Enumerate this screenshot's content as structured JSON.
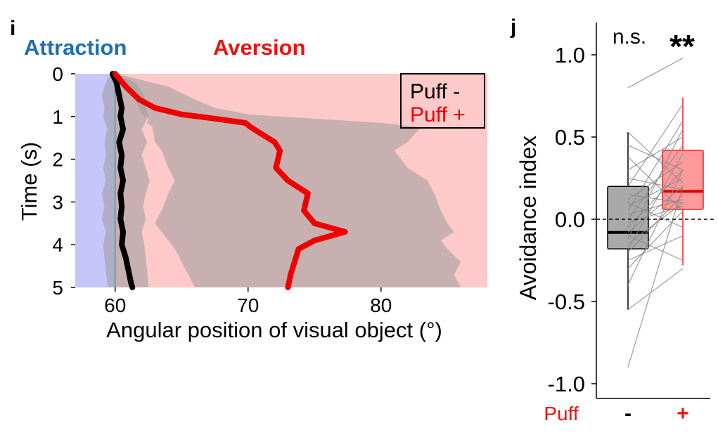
{
  "panels": {
    "i": {
      "label": "i",
      "header_attraction": "Attraction",
      "header_aversion": "Aversion",
      "colors": {
        "attraction_text": "#1f6fb5",
        "aversion_text": "#ee1111",
        "attraction_bg": "#c6c6fb",
        "aversion_bg": "#fec9c9",
        "band": "#9a9a9a",
        "puff_minus": "#000000",
        "puff_plus": "#ee0000"
      }
    },
    "j": {
      "label": "j",
      "sig_minus": "n.s.",
      "sig_plus": "**",
      "puff_label": "Puff",
      "colors": {
        "box_minus": "#a9a9a9",
        "box_plus": "#ff9a9a",
        "plus_edge": "#ee2222",
        "lines": "#8a8a8a"
      }
    }
  },
  "chart_data": [
    {
      "type": "line",
      "panel": "i",
      "xlabel": "Angular position of visual object (°)",
      "ylabel": "Time (s)",
      "xlim": [
        57,
        88
      ],
      "ylim": [
        5,
        0
      ],
      "x_ticks": [
        "60",
        "70",
        "80"
      ],
      "y_ticks": [
        "0",
        "1",
        "2",
        "3",
        "4",
        "5"
      ],
      "legend": [
        "Puff -",
        "Puff +"
      ],
      "legend_position": "top-right",
      "regions": [
        {
          "name": "Attraction",
          "x": [
            57,
            60
          ]
        },
        {
          "name": "Aversion",
          "x": [
            60,
            88
          ]
        }
      ],
      "series": [
        {
          "name": "Puff -",
          "t": [
            0,
            0.2,
            0.5,
            0.8,
            1.0,
            1.3,
            1.6,
            1.9,
            2.2,
            2.5,
            2.8,
            3.1,
            3.4,
            3.7,
            4.0,
            4.3,
            4.6,
            4.9,
            5.0
          ],
          "values": [
            59.8,
            60.1,
            60.3,
            60.5,
            60.4,
            60.6,
            60.3,
            60.5,
            60.4,
            60.6,
            60.4,
            60.5,
            60.4,
            60.6,
            60.5,
            60.8,
            61.0,
            61.2,
            61.3
          ],
          "band_upper": [
            59.9,
            61.5,
            62.2,
            62.3,
            62.5,
            62.0,
            62.4,
            62.0,
            62.3,
            62.6,
            62.3,
            62.1,
            62.3,
            62.0,
            62.2,
            62.3,
            62.4,
            62.5,
            62.5
          ],
          "band_lower": [
            59.7,
            59.3,
            59.0,
            59.2,
            59.1,
            59.4,
            59.2,
            59.3,
            59.1,
            59.3,
            59.0,
            59.2,
            59.0,
            59.3,
            59.1,
            59.2,
            59.3,
            59.4,
            59.5
          ]
        },
        {
          "name": "Puff +",
          "t": [
            0,
            0.3,
            0.6,
            0.8,
            0.95,
            1.05,
            1.15,
            1.25,
            1.6,
            1.8,
            2.2,
            2.5,
            2.8,
            3.2,
            3.5,
            3.7,
            3.9,
            4.1,
            4.4,
            4.7,
            5.0
          ],
          "values": [
            60.0,
            60.8,
            61.8,
            63.0,
            65.0,
            67.5,
            69.8,
            70.2,
            72.0,
            72.4,
            72.1,
            73.0,
            74.5,
            74.2,
            75.0,
            77.3,
            75.0,
            73.8,
            73.5,
            73.2,
            73.0
          ],
          "band_upper": [
            60.1,
            64.0,
            66.0,
            67.5,
            70.0,
            75.0,
            80.0,
            83.0,
            82.0,
            81.0,
            82.0,
            83.5,
            84.0,
            84.5,
            85.0,
            85.5,
            84.5,
            85.0,
            86.0,
            85.5,
            86.0
          ],
          "band_lower": [
            59.9,
            60.5,
            61.5,
            61.8,
            62.0,
            62.5,
            62.4,
            62.8,
            63.0,
            63.5,
            64.0,
            64.5,
            64.0,
            63.5,
            63.0,
            63.5,
            64.0,
            64.5,
            65.0,
            65.5,
            66.0
          ]
        }
      ]
    },
    {
      "type": "box",
      "panel": "j",
      "ylabel": "Avoidance index",
      "xlabel": "Puff",
      "categories": [
        "-",
        "+"
      ],
      "ylim": [
        -1.1,
        1.1
      ],
      "y_ticks": [
        "1.0",
        "0.5",
        "0.0",
        "-0.5",
        "-1.0"
      ],
      "reference_line": 0,
      "significance": [
        "n.s.",
        "**"
      ],
      "boxes": [
        {
          "name": "-",
          "q1": -0.18,
          "median": -0.08,
          "q3": 0.2,
          "whisker_low": -0.55,
          "whisker_high": 0.53
        },
        {
          "name": "+",
          "q1": 0.06,
          "median": 0.17,
          "q3": 0.42,
          "whisker_low": -0.28,
          "whisker_high": 0.74
        }
      ],
      "paired": [
        [
          -0.9,
          0.2
        ],
        [
          -0.55,
          -0.3
        ],
        [
          -0.4,
          0.3
        ],
        [
          -0.3,
          0.05
        ],
        [
          -0.25,
          -0.1
        ],
        [
          -0.2,
          0.15
        ],
        [
          -0.18,
          0.4
        ],
        [
          -0.15,
          0.1
        ],
        [
          -0.12,
          0.55
        ],
        [
          -0.1,
          -0.25
        ],
        [
          -0.08,
          0.2
        ],
        [
          -0.05,
          0.3
        ],
        [
          -0.02,
          0.08
        ],
        [
          0.0,
          0.45
        ],
        [
          0.03,
          0.12
        ],
        [
          0.05,
          0.6
        ],
        [
          0.08,
          0.25
        ],
        [
          0.1,
          -0.05
        ],
        [
          0.12,
          0.35
        ],
        [
          0.15,
          0.1
        ],
        [
          0.2,
          0.7
        ],
        [
          0.25,
          0.18
        ],
        [
          0.3,
          0.5
        ],
        [
          0.38,
          0.05
        ],
        [
          0.45,
          0.3
        ],
        [
          0.53,
          0.22
        ],
        [
          0.8,
          0.98
        ]
      ]
    }
  ]
}
